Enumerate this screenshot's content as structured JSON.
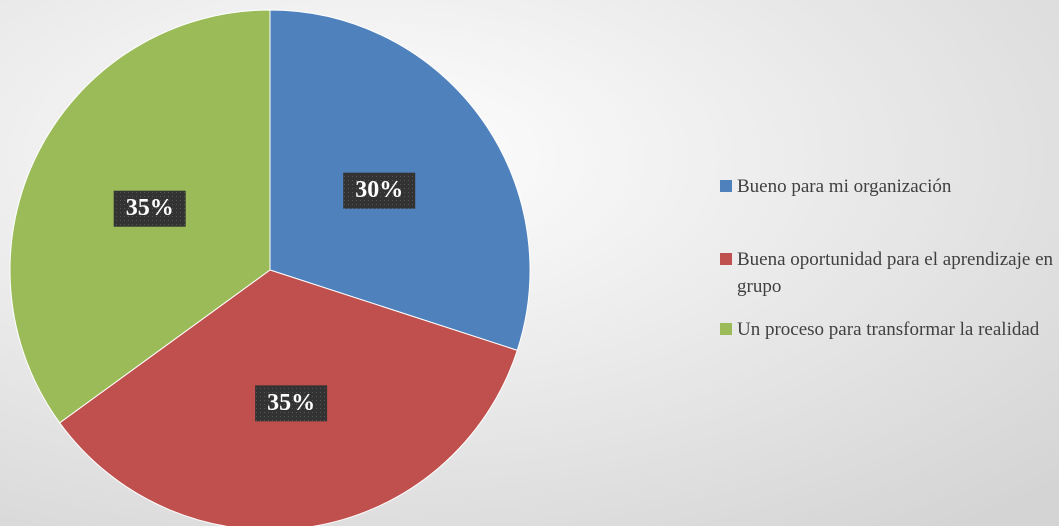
{
  "chart_data": {
    "type": "pie",
    "categories": [
      "Bueno para mi organización",
      "Buena oportunidad para el aprendizaje en grupo",
      "Un proceso para transformar la realidad"
    ],
    "values": [
      30,
      35,
      35
    ],
    "value_labels": [
      "30%",
      "35%",
      "35%"
    ],
    "colors": [
      "#4f81bd",
      "#c0504d",
      "#9bbb59"
    ],
    "legend": "right"
  }
}
